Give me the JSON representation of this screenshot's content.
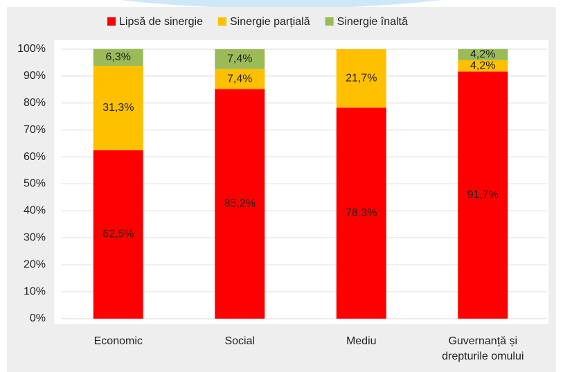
{
  "chart_data": {
    "type": "stacked_bar",
    "categories": [
      "Economic",
      "Social",
      "Mediu",
      "Guvernanță și drepturile omului"
    ],
    "series": [
      {
        "name": "Lipsă de sinergie",
        "color": "#ff0000",
        "values": [
          62.5,
          85.2,
          78.3,
          91.7
        ],
        "value_labels": [
          "62,5%",
          "85,2%",
          "78,3%",
          "91,7%"
        ]
      },
      {
        "name": "Sinergie parțială",
        "color": "#ffc000",
        "values": [
          31.3,
          7.4,
          21.7,
          4.2
        ],
        "value_labels": [
          "31,3%",
          "7,4%",
          "21,7%",
          "4,2%"
        ]
      },
      {
        "name": "Sinergie înaltă",
        "color": "#9bbb59",
        "values": [
          6.3,
          7.4,
          null,
          4.2
        ],
        "value_labels": [
          "6,3%",
          "7,4%",
          null,
          "4,2%"
        ]
      }
    ],
    "ylim": [
      0,
      100
    ],
    "yticks": [
      {
        "value": 0,
        "label": "0%"
      },
      {
        "value": 10,
        "label": "10%"
      },
      {
        "value": 20,
        "label": "20%"
      },
      {
        "value": 30,
        "label": "30%"
      },
      {
        "value": 40,
        "label": "40%"
      },
      {
        "value": 50,
        "label": "50%"
      },
      {
        "value": 60,
        "label": "60%"
      },
      {
        "value": 70,
        "label": "70%"
      },
      {
        "value": 80,
        "label": "80%"
      },
      {
        "value": 90,
        "label": "90%"
      },
      {
        "value": 100,
        "label": "100%"
      }
    ],
    "grid": true,
    "legend": "top"
  }
}
